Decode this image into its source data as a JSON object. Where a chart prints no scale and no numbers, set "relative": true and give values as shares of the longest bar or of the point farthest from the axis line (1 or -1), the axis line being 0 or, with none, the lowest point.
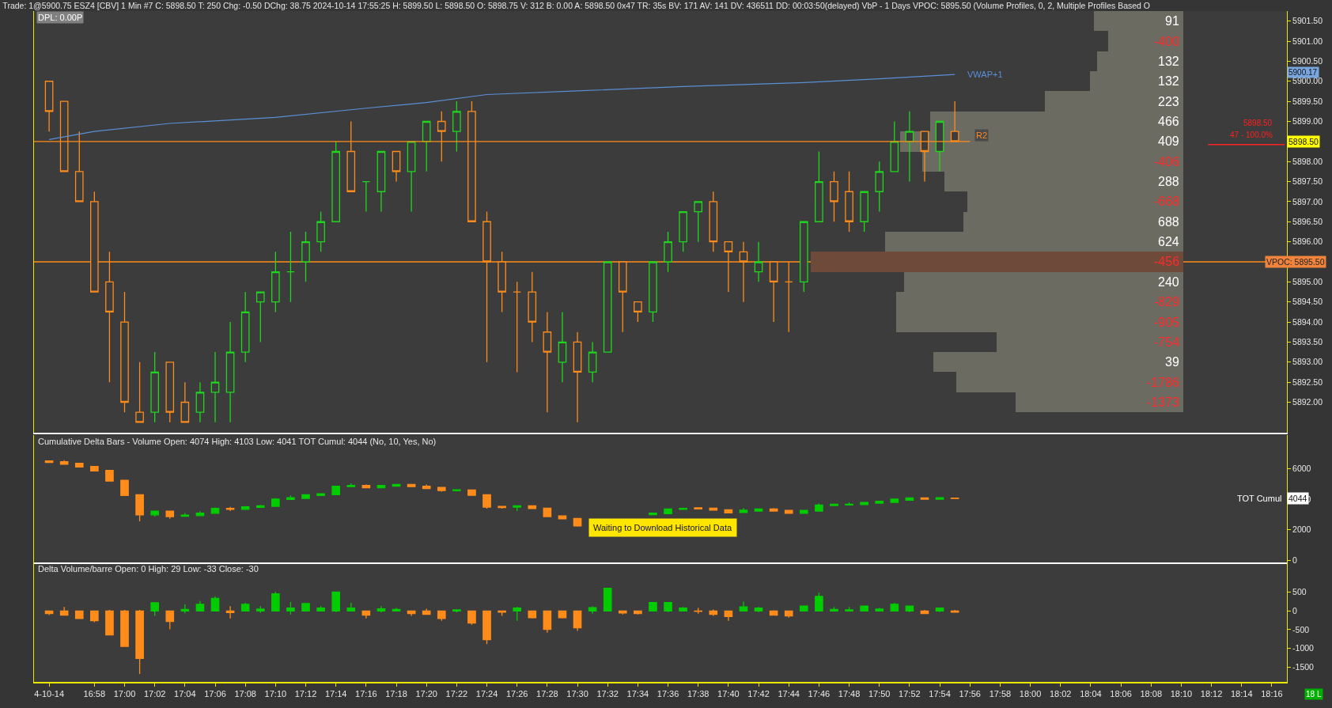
{
  "chart_data": [
    {
      "type": "candlestick",
      "title": "Trade: 1@5900.75 ESZ4 [CBV] 1 Min #7 C: 5898.50 T: 250 Chg: -0.50 DChg: 38.75 2024-10-14 17:55:25 H: 5899.50 L: 5898.50 O: 5898.75 V: 312 B: 0.00 A: 5898.50 0x47 TR: 35s BV: 171 AV: 141 DV: 436511 DD: 00:03:50(delayed) VbP - 1 Days VPOC: 5895.50 (Volume Profiles, 0, 2, Multiple Profiles Based O",
      "subtitle": "DPL: 0.00P",
      "x": [
        "2024-10-14T16:55",
        "2024-10-14T16:56",
        "2024-10-14T16:57",
        "2024-10-14T16:58",
        "2024-10-14T16:59",
        "2024-10-14T17:00",
        "2024-10-14T17:01",
        "2024-10-14T17:02",
        "2024-10-14T17:03",
        "2024-10-14T17:04",
        "2024-10-14T17:05",
        "2024-10-14T17:06",
        "2024-10-14T17:07",
        "2024-10-14T17:08",
        "2024-10-14T17:09",
        "2024-10-14T17:10",
        "2024-10-14T17:11",
        "2024-10-14T17:12",
        "2024-10-14T17:13",
        "2024-10-14T17:14",
        "2024-10-14T17:15",
        "2024-10-14T17:16",
        "2024-10-14T17:17",
        "2024-10-14T17:18",
        "2024-10-14T17:19",
        "2024-10-14T17:20",
        "2024-10-14T17:21",
        "2024-10-14T17:22",
        "2024-10-14T17:23",
        "2024-10-14T17:24",
        "2024-10-14T17:25",
        "2024-10-14T17:26",
        "2024-10-14T17:27",
        "2024-10-14T17:28",
        "2024-10-14T17:29",
        "2024-10-14T17:30",
        "2024-10-14T17:31",
        "2024-10-14T17:32",
        "2024-10-14T17:33",
        "2024-10-14T17:34",
        "2024-10-14T17:35",
        "2024-10-14T17:36",
        "2024-10-14T17:37",
        "2024-10-14T17:38",
        "2024-10-14T17:39",
        "2024-10-14T17:40",
        "2024-10-14T17:41",
        "2024-10-14T17:42",
        "2024-10-14T17:43",
        "2024-10-14T17:44",
        "2024-10-14T17:45",
        "2024-10-14T17:46",
        "2024-10-14T17:47",
        "2024-10-14T17:48",
        "2024-10-14T17:49",
        "2024-10-14T17:50",
        "2024-10-14T17:51",
        "2024-10-14T17:52",
        "2024-10-14T17:53",
        "2024-10-14T17:54",
        "2024-10-14T17:55"
      ],
      "series": [
        {
          "ohlc": [
            [
              5900.0,
              5900.0,
              5898.75,
              5899.25
            ],
            [
              5899.5,
              5899.5,
              5897.75,
              5897.75
            ],
            [
              5897.75,
              5898.75,
              5897.0,
              5897.0
            ],
            [
              5897.0,
              5897.25,
              5894.75,
              5894.75
            ],
            [
              5895.0,
              5895.75,
              5892.5,
              5894.25
            ],
            [
              5894.0,
              5894.75,
              5891.75,
              5892.0
            ],
            [
              5891.75,
              5893.0,
              5891.5,
              5891.5
            ],
            [
              5891.75,
              5893.25,
              5891.5,
              5892.75
            ],
            [
              5893.0,
              5893.0,
              5891.5,
              5891.75
            ],
            [
              5892.0,
              5892.5,
              5891.5,
              5891.5
            ],
            [
              5891.75,
              5892.5,
              5891.5,
              5892.25
            ],
            [
              5892.25,
              5893.25,
              5891.5,
              5892.5
            ],
            [
              5892.25,
              5894.0,
              5891.5,
              5893.25
            ],
            [
              5893.25,
              5894.75,
              5893.0,
              5894.25
            ],
            [
              5894.5,
              5894.75,
              5893.5,
              5894.75
            ],
            [
              5894.5,
              5895.75,
              5894.25,
              5895.25
            ],
            [
              5895.25,
              5896.25,
              5894.5,
              5895.25
            ],
            [
              5895.5,
              5896.25,
              5895.0,
              5896.0
            ],
            [
              5896.0,
              5896.75,
              5895.75,
              5896.5
            ],
            [
              5896.5,
              5898.5,
              5896.5,
              5898.25
            ],
            [
              5898.25,
              5899.0,
              5897.25,
              5897.25
            ],
            [
              5897.5,
              5897.5,
              5896.75,
              5897.5
            ],
            [
              5897.25,
              5898.25,
              5896.75,
              5898.25
            ],
            [
              5898.25,
              5898.25,
              5897.5,
              5897.75
            ],
            [
              5897.75,
              5898.5,
              5896.75,
              5898.5
            ],
            [
              5898.5,
              5899.0,
              5897.75,
              5899.0
            ],
            [
              5899.0,
              5899.25,
              5898.0,
              5898.75
            ],
            [
              5898.75,
              5899.5,
              5898.25,
              5899.25
            ],
            [
              5899.25,
              5899.5,
              5896.5,
              5896.5
            ],
            [
              5896.5,
              5896.75,
              5893.0,
              5895.5
            ],
            [
              5895.5,
              5895.75,
              5894.25,
              5894.75
            ],
            [
              5894.75,
              5895.0,
              5892.75,
              5894.75
            ],
            [
              5894.75,
              5895.25,
              5893.5,
              5894.0
            ],
            [
              5893.75,
              5894.25,
              5891.75,
              5893.25
            ],
            [
              5893.0,
              5894.25,
              5892.5,
              5893.5
            ],
            [
              5893.5,
              5893.75,
              5891.5,
              5892.75
            ],
            [
              5892.75,
              5893.5,
              5892.5,
              5893.25
            ],
            [
              5893.25,
              5895.5,
              5893.25,
              5895.5
            ],
            [
              5895.5,
              5895.5,
              5893.75,
              5894.75
            ],
            [
              5894.5,
              5894.5,
              5894.0,
              5894.25
            ],
            [
              5894.25,
              5895.5,
              5894.0,
              5895.5
            ],
            [
              5895.5,
              5896.25,
              5895.25,
              5896.0
            ],
            [
              5896.0,
              5896.75,
              5895.75,
              5896.75
            ],
            [
              5896.75,
              5897.0,
              5896.0,
              5897.0
            ],
            [
              5897.0,
              5897.25,
              5895.75,
              5896.0
            ],
            [
              5896.0,
              5896.0,
              5894.75,
              5895.75
            ],
            [
              5895.75,
              5896.0,
              5894.5,
              5895.5
            ],
            [
              5895.25,
              5896.0,
              5895.0,
              5895.5
            ],
            [
              5895.5,
              5895.5,
              5894.0,
              5895.0
            ],
            [
              5895.0,
              5895.5,
              5893.75,
              5895.0
            ],
            [
              5895.0,
              5896.5,
              5894.75,
              5896.5
            ],
            [
              5896.5,
              5898.25,
              5896.5,
              5897.5
            ],
            [
              5897.5,
              5897.75,
              5896.5,
              5897.0
            ],
            [
              5897.25,
              5897.75,
              5896.25,
              5896.5
            ],
            [
              5896.5,
              5897.25,
              5896.25,
              5897.25
            ],
            [
              5897.25,
              5898.0,
              5896.75,
              5897.75
            ],
            [
              5897.75,
              5899.0,
              5897.75,
              5898.5
            ],
            [
              5898.5,
              5899.25,
              5897.5,
              5898.75
            ],
            [
              5898.75,
              5898.75,
              5897.5,
              5898.25
            ],
            [
              5898.25,
              5899.0,
              5897.75,
              5899.0
            ],
            [
              5898.75,
              5899.5,
              5898.5,
              5898.5
            ]
          ],
          "colors": [
            "#ff8c1a",
            "#ff8c1a",
            "#ff8c1a",
            "#ff8c1a",
            "#ff8c1a",
            "#ff8c1a",
            "#ff8c1a",
            "#1ed81e",
            "#ff8c1a",
            "#ff8c1a",
            "#1ed81e",
            "#1ed81e",
            "#1ed81e",
            "#1ed81e",
            "#1ed81e",
            "#1ed81e",
            "#1ed81e",
            "#1ed81e",
            "#1ed81e",
            "#1ed81e",
            "#ff8c1a",
            "#1ed81e",
            "#1ed81e",
            "#ff8c1a",
            "#1ed81e",
            "#1ed81e",
            "#ff8c1a",
            "#1ed81e",
            "#ff8c1a",
            "#ff8c1a",
            "#ff8c1a",
            "#ff8c1a",
            "#ff8c1a",
            "#ff8c1a",
            "#1ed81e",
            "#ff8c1a",
            "#1ed81e",
            "#1ed81e",
            "#ff8c1a",
            "#ff8c1a",
            "#1ed81e",
            "#1ed81e",
            "#1ed81e",
            "#1ed81e",
            "#ff8c1a",
            "#ff8c1a",
            "#ff8c1a",
            "#1ed81e",
            "#ff8c1a",
            "#ff8c1a",
            "#1ed81e",
            "#1ed81e",
            "#ff8c1a",
            "#ff8c1a",
            "#1ed81e",
            "#1ed81e",
            "#1ed81e",
            "#1ed81e",
            "#ff8c1a",
            "#1ed81e",
            "#ff8c1a"
          ]
        },
        {
          "type": "line",
          "name": "VWAP+1",
          "color": "#5b8fd6",
          "x": [
            "2024-10-14T16:55",
            "2024-10-14T16:58",
            "2024-10-14T17:03",
            "2024-10-14T17:10",
            "2024-10-14T17:16",
            "2024-10-14T17:20",
            "2024-10-14T17:24",
            "2024-10-14T17:30",
            "2024-10-14T17:37",
            "2024-10-14T17:45",
            "2024-10-14T17:50",
            "2024-10-14T17:55"
          ],
          "values": [
            5898.55,
            5898.75,
            5898.95,
            5899.1,
            5899.33,
            5899.47,
            5899.67,
            5899.76,
            5899.87,
            5899.97,
            5900.06,
            5900.17
          ]
        }
      ],
      "xlim": [
        "2024-10-14T16:54",
        "2024-10-14T18:17"
      ],
      "ylim": [
        5891.25,
        5901.75
      ],
      "yticks": [
        {
          "value": 5901.5,
          "label": "5901.50"
        },
        {
          "value": 5901.0,
          "label": "5901.00"
        },
        {
          "value": 5900.5,
          "label": "5900.50"
        },
        {
          "value": 5900.0,
          "label": "5900.00"
        },
        {
          "value": 5899.5,
          "label": "5899.50"
        },
        {
          "value": 5899.0,
          "label": "5899.00"
        },
        {
          "value": 5898.5,
          "label": null
        },
        {
          "value": 5898.0,
          "label": "5898.00"
        },
        {
          "value": 5897.5,
          "label": "5897.50"
        },
        {
          "value": 5897.0,
          "label": "5897.00"
        },
        {
          "value": 5896.5,
          "label": "5896.50"
        },
        {
          "value": 5896.0,
          "label": "5896.00"
        },
        {
          "value": 5895.5,
          "label": null
        },
        {
          "value": 5895.0,
          "label": "5895.00"
        },
        {
          "value": 5894.5,
          "label": "5894.50"
        },
        {
          "value": 5894.0,
          "label": "5894.00"
        },
        {
          "value": 5893.5,
          "label": "5893.50"
        },
        {
          "value": 5893.0,
          "label": "5893.00"
        },
        {
          "value": 5892.5,
          "label": "5892.50"
        },
        {
          "value": 5892.0,
          "label": "5892.00"
        }
      ],
      "ref_lines": [
        {
          "axis": "y",
          "value": 5898.5,
          "label": "R2",
          "color": "#ff8c1a"
        },
        {
          "axis": "y",
          "value": 5895.5,
          "label": "VPOC: 5895.50",
          "color": "#ff8c1a"
        }
      ],
      "annotations": [
        "5900.17",
        {
          "text": "5898.50",
          "y": 5898.5
        },
        "5898.50",
        "47 - 100.0%"
      ],
      "tick_labels": "y"
    },
    {
      "type": "bar",
      "orientation": "horizontal",
      "relative": true,
      "tick_labels": false,
      "categories": [
        "5901.50",
        "5901.00",
        "5900.50",
        "5900.00",
        "5899.50",
        "5899.00",
        "5898.50",
        "5898.00",
        "5897.50",
        "5897.00",
        "5896.50",
        "5896.00",
        "5895.50",
        "5895.00",
        "5894.50",
        "5894.00",
        "5893.50",
        "5893.00",
        "5892.50",
        "5892.00"
      ],
      "values": [
        0.24,
        0.2,
        0.23,
        0.25,
        0.37,
        0.68,
        0.76,
        0.7,
        0.64,
        0.58,
        0.59,
        0.8,
        1.0,
        0.75,
        0.77,
        0.77,
        0.5,
        0.67,
        0.61,
        0.45
      ],
      "colors": [
        "#6b6b62",
        "#6b6b62",
        "#6b6b62",
        "#6b6b62",
        "#6b6b62",
        "#6b6b62",
        "#6b6b62",
        "#6b6b62",
        "#6b6b62",
        "#6b6b62",
        "#6b6b62",
        "#6b6b62",
        "#6e4a3a",
        "#6b6b62",
        "#6b6b62",
        "#6b6b62",
        "#6b6b62",
        "#6b6b62",
        "#6b6b62",
        "#6b6b62"
      ],
      "annotations": [
        "91",
        "-400",
        "132",
        "132",
        "223",
        "466",
        "409",
        "-406",
        "288",
        "-668",
        "688",
        "624",
        "-456",
        "240",
        "-829",
        "-905",
        "-754",
        "39",
        "-1786",
        "-1373"
      ]
    },
    {
      "type": "candlestick",
      "title": "Cumulative Delta Bars - Volume Open: 4074 High: 4103 Low: 4041 TOT Cumul: 4044 (No, 10, Yes, No)",
      "x": [
        "2024-10-14T16:55",
        "2024-10-14T16:56",
        "2024-10-14T16:57",
        "2024-10-14T16:58",
        "2024-10-14T16:59",
        "2024-10-14T17:00",
        "2024-10-14T17:01",
        "2024-10-14T17:02",
        "2024-10-14T17:03",
        "2024-10-14T17:04",
        "2024-10-14T17:05",
        "2024-10-14T17:06",
        "2024-10-14T17:07",
        "2024-10-14T17:08",
        "2024-10-14T17:09",
        "2024-10-14T17:10",
        "2024-10-14T17:11",
        "2024-10-14T17:12",
        "2024-10-14T17:13",
        "2024-10-14T17:14",
        "2024-10-14T17:15",
        "2024-10-14T17:16",
        "2024-10-14T17:17",
        "2024-10-14T17:18",
        "2024-10-14T17:19",
        "2024-10-14T17:20",
        "2024-10-14T17:21",
        "2024-10-14T17:22",
        "2024-10-14T17:23",
        "2024-10-14T17:24",
        "2024-10-14T17:25",
        "2024-10-14T17:26",
        "2024-10-14T17:27",
        "2024-10-14T17:28",
        "2024-10-14T17:29",
        "2024-10-14T17:30",
        "2024-10-14T17:35",
        "2024-10-14T17:36",
        "2024-10-14T17:37",
        "2024-10-14T17:38",
        "2024-10-14T17:39",
        "2024-10-14T17:40",
        "2024-10-14T17:41",
        "2024-10-14T17:42",
        "2024-10-14T17:43",
        "2024-10-14T17:44",
        "2024-10-14T17:45",
        "2024-10-14T17:46",
        "2024-10-14T17:47",
        "2024-10-14T17:48",
        "2024-10-14T17:49",
        "2024-10-14T17:50",
        "2024-10-14T17:51",
        "2024-10-14T17:52",
        "2024-10-14T17:53",
        "2024-10-14T17:54",
        "2024-10-14T17:55"
      ],
      "series": [
        {
          "ohlc": [
            [
              6500,
              6500,
              6410,
              6410
            ],
            [
              6450,
              6550,
              6290,
              6290
            ],
            [
              6350,
              6350,
              6110,
              6110
            ],
            [
              6140,
              6140,
              5850,
              5850
            ],
            [
              5880,
              5880,
              5180,
              5180
            ],
            [
              5230,
              5270,
              4240,
              4240
            ],
            [
              4290,
              4290,
              2550,
              2970
            ],
            [
              2970,
              3210,
              2860,
              3210
            ],
            [
              3210,
              3210,
              2710,
              2860
            ],
            [
              2880,
              3090,
              2880,
              2950
            ],
            [
              2920,
              3210,
              2920,
              3090
            ],
            [
              3070,
              3450,
              3070,
              3400
            ],
            [
              3400,
              3500,
              3220,
              3330
            ],
            [
              3330,
              3550,
              3330,
              3500
            ],
            [
              3460,
              3620,
              3460,
              3570
            ],
            [
              3530,
              4070,
              3530,
              4010
            ],
            [
              3980,
              4240,
              3980,
              4100
            ],
            [
              4050,
              4290,
              4050,
              4290
            ],
            [
              4240,
              4390,
              4240,
              4360
            ],
            [
              4290,
              4840,
              4290,
              4840
            ],
            [
              4820,
              5040,
              4820,
              4900
            ],
            [
              4900,
              4960,
              4720,
              4750
            ],
            [
              4750,
              4900,
              4750,
              4900
            ],
            [
              4850,
              4960,
              4850,
              4960
            ],
            [
              4960,
              4960,
              4820,
              4820
            ],
            [
              4850,
              4960,
              4700,
              4700
            ],
            [
              4770,
              4800,
              4490,
              4560
            ],
            [
              4560,
              4610,
              4510,
              4610
            ],
            [
              4600,
              4600,
              4250,
              4250
            ],
            [
              4290,
              4290,
              3380,
              3480
            ],
            [
              3520,
              3520,
              3380,
              3450
            ],
            [
              3480,
              3570,
              3220,
              3570
            ],
            [
              3570,
              3570,
              3380,
              3380
            ],
            [
              3410,
              3410,
              2830,
              2860
            ],
            [
              2900,
              2900,
              2710,
              2710
            ],
            [
              2740,
              2740,
              2200,
              2250
            ],
            [
              2980,
              3090,
              2980,
              3090
            ],
            [
              3050,
              3360,
              3050,
              3360
            ],
            [
              3330,
              3400,
              3330,
              3400
            ],
            [
              3430,
              3460,
              3360,
              3360
            ],
            [
              3410,
              3410,
              3280,
              3280
            ],
            [
              3310,
              3310,
              3070,
              3100
            ],
            [
              3120,
              3410,
              3120,
              3280
            ],
            [
              3220,
              3360,
              3220,
              3360
            ],
            [
              3360,
              3410,
              3220,
              3220
            ],
            [
              3260,
              3260,
              3070,
              3070
            ],
            [
              3070,
              3260,
              3070,
              3260
            ],
            [
              3220,
              3720,
              3220,
              3620
            ],
            [
              3580,
              3670,
              3580,
              3670
            ],
            [
              3620,
              3790,
              3620,
              3670
            ],
            [
              3640,
              3790,
              3640,
              3790
            ],
            [
              3740,
              3890,
              3740,
              3860
            ],
            [
              3790,
              4050,
              3790,
              4000
            ],
            [
              3930,
              4080,
              3930,
              4080
            ],
            [
              4080,
              4080,
              4000,
              4000
            ],
            [
              4000,
              4130,
              4000,
              4100
            ],
            [
              4074,
              4103,
              4041,
              4044
            ]
          ],
          "colors": [
            "#ff8c1a",
            "#ff8c1a",
            "#ff8c1a",
            "#ff8c1a",
            "#ff8c1a",
            "#ff8c1a",
            "#ff8c1a",
            "#00cc00",
            "#ff8c1a",
            "#00cc00",
            "#00cc00",
            "#00cc00",
            "#ff8c1a",
            "#00cc00",
            "#00cc00",
            "#00cc00",
            "#00cc00",
            "#00cc00",
            "#00cc00",
            "#00cc00",
            "#00cc00",
            "#ff8c1a",
            "#00cc00",
            "#00cc00",
            "#ff8c1a",
            "#ff8c1a",
            "#ff8c1a",
            "#00cc00",
            "#ff8c1a",
            "#ff8c1a",
            "#ff8c1a",
            "#00cc00",
            "#ff8c1a",
            "#ff8c1a",
            "#ff8c1a",
            "#ff8c1a",
            "#00cc00",
            "#00cc00",
            "#00cc00",
            "#ff8c1a",
            "#ff8c1a",
            "#ff8c1a",
            "#00cc00",
            "#00cc00",
            "#ff8c1a",
            "#ff8c1a",
            "#00cc00",
            "#00cc00",
            "#00cc00",
            "#00cc00",
            "#00cc00",
            "#00cc00",
            "#00cc00",
            "#00cc00",
            "#ff8c1a",
            "#00cc00",
            "#ff8c1a"
          ]
        }
      ],
      "xlim": [
        "2024-10-14T16:54",
        "2024-10-14T18:17"
      ],
      "ylim": [
        -150,
        8200
      ],
      "yticks": [
        0,
        2000,
        4000,
        6000
      ],
      "annotations": [
        "TOT Cumul",
        {
          "text": "4044",
          "y": 4044
        },
        "Waiting to Download Historical Data"
      ],
      "tick_labels": "y"
    },
    {
      "type": "candlestick",
      "title": "Delta Volume/barre Open: 0 High: 29 Low: -33 Close: -30",
      "x": [
        "2024-10-14T16:55",
        "2024-10-14T16:56",
        "2024-10-14T16:57",
        "2024-10-14T16:58",
        "2024-10-14T16:59",
        "2024-10-14T17:00",
        "2024-10-14T17:01",
        "2024-10-14T17:02",
        "2024-10-14T17:03",
        "2024-10-14T17:04",
        "2024-10-14T17:05",
        "2024-10-14T17:06",
        "2024-10-14T17:07",
        "2024-10-14T17:08",
        "2024-10-14T17:09",
        "2024-10-14T17:10",
        "2024-10-14T17:11",
        "2024-10-14T17:12",
        "2024-10-14T17:13",
        "2024-10-14T17:14",
        "2024-10-14T17:15",
        "2024-10-14T17:16",
        "2024-10-14T17:17",
        "2024-10-14T17:18",
        "2024-10-14T17:19",
        "2024-10-14T17:20",
        "2024-10-14T17:21",
        "2024-10-14T17:22",
        "2024-10-14T17:23",
        "2024-10-14T17:24",
        "2024-10-14T17:25",
        "2024-10-14T17:26",
        "2024-10-14T17:27",
        "2024-10-14T17:28",
        "2024-10-14T17:29",
        "2024-10-14T17:30",
        "2024-10-14T17:31",
        "2024-10-14T17:32",
        "2024-10-14T17:33",
        "2024-10-14T17:34",
        "2024-10-14T17:35",
        "2024-10-14T17:36",
        "2024-10-14T17:37",
        "2024-10-14T17:38",
        "2024-10-14T17:39",
        "2024-10-14T17:40",
        "2024-10-14T17:41",
        "2024-10-14T17:42",
        "2024-10-14T17:43",
        "2024-10-14T17:44",
        "2024-10-14T17:45",
        "2024-10-14T17:46",
        "2024-10-14T17:47",
        "2024-10-14T17:48",
        "2024-10-14T17:49",
        "2024-10-14T17:50",
        "2024-10-14T17:51",
        "2024-10-14T17:52",
        "2024-10-14T17:53",
        "2024-10-14T17:54",
        "2024-10-14T17:55"
      ],
      "series": [
        {
          "ohlc": [
            [
              0,
              0,
              -110,
              -70
            ],
            [
              0,
              110,
              -110,
              -110
            ],
            [
              0,
              0,
              -200,
              -200
            ],
            [
              0,
              0,
              -300,
              -260
            ],
            [
              0,
              30,
              -640,
              -640
            ],
            [
              0,
              30,
              -950,
              -950
            ],
            [
              0,
              30,
              -1690,
              -1270
            ],
            [
              0,
              220,
              -130,
              220
            ],
            [
              0,
              0,
              -490,
              -280
            ],
            [
              0,
              180,
              -60,
              40
            ],
            [
              0,
              270,
              0,
              180
            ],
            [
              0,
              390,
              0,
              340
            ],
            [
              0,
              130,
              -200,
              -40
            ],
            [
              0,
              220,
              0,
              180
            ],
            [
              0,
              130,
              -50,
              50
            ],
            [
              0,
              510,
              0,
              460
            ],
            [
              0,
              240,
              -90,
              80
            ],
            [
              0,
              200,
              0,
              200
            ],
            [
              0,
              130,
              0,
              80
            ],
            [
              0,
              510,
              -30,
              510
            ],
            [
              0,
              220,
              0,
              80
            ],
            [
              0,
              0,
              -200,
              -110
            ],
            [
              0,
              130,
              -40,
              60
            ],
            [
              0,
              80,
              0,
              40
            ],
            [
              0,
              0,
              -130,
              -70
            ],
            [
              0,
              60,
              -90,
              -90
            ],
            [
              0,
              0,
              -260,
              -200
            ],
            [
              0,
              30,
              -40,
              30
            ],
            [
              0,
              0,
              -370,
              -320
            ],
            [
              0,
              0,
              -890,
              -770
            ],
            [
              0,
              0,
              -130,
              -30
            ],
            [
              0,
              110,
              -260,
              80
            ],
            [
              0,
              0,
              -200,
              -180
            ],
            [
              0,
              0,
              -580,
              -490
            ],
            [
              0,
              0,
              -200,
              -180
            ],
            [
              0,
              0,
              -530,
              -450
            ],
            [
              0,
              130,
              -70,
              90
            ],
            [
              0,
              610,
              0,
              610
            ],
            [
              0,
              0,
              -90,
              -50
            ],
            [
              0,
              0,
              -90,
              -70
            ],
            [
              0,
              230,
              0,
              230
            ],
            [
              0,
              230,
              -30,
              230
            ],
            [
              0,
              110,
              0,
              80
            ],
            [
              0,
              80,
              -70,
              -10
            ],
            [
              0,
              40,
              -130,
              -90
            ],
            [
              0,
              0,
              -260,
              -150
            ],
            [
              0,
              250,
              0,
              110
            ],
            [
              0,
              110,
              -30,
              80
            ],
            [
              0,
              20,
              -110,
              -110
            ],
            [
              0,
              0,
              -180,
              -130
            ],
            [
              0,
              130,
              0,
              130
            ],
            [
              0,
              490,
              0,
              390
            ],
            [
              0,
              110,
              -10,
              40
            ],
            [
              0,
              110,
              0,
              30
            ],
            [
              0,
              130,
              0,
              130
            ],
            [
              0,
              80,
              0,
              50
            ],
            [
              0,
              220,
              0,
              180
            ],
            [
              0,
              130,
              -30,
              130
            ],
            [
              0,
              30,
              -70,
              -70
            ],
            [
              0,
              80,
              -30,
              80
            ],
            [
              0,
              29,
              -33,
              -30
            ]
          ],
          "colors": [
            "#ff8c1a",
            "#ff8c1a",
            "#ff8c1a",
            "#ff8c1a",
            "#ff8c1a",
            "#ff8c1a",
            "#ff8c1a",
            "#00cc00",
            "#ff8c1a",
            "#00cc00",
            "#00cc00",
            "#00cc00",
            "#ff8c1a",
            "#00cc00",
            "#00cc00",
            "#00cc00",
            "#00cc00",
            "#00cc00",
            "#00cc00",
            "#00cc00",
            "#00cc00",
            "#ff8c1a",
            "#00cc00",
            "#00cc00",
            "#ff8c1a",
            "#ff8c1a",
            "#ff8c1a",
            "#00cc00",
            "#ff8c1a",
            "#ff8c1a",
            "#ff8c1a",
            "#00cc00",
            "#ff8c1a",
            "#ff8c1a",
            "#ff8c1a",
            "#ff8c1a",
            "#00cc00",
            "#00cc00",
            "#ff8c1a",
            "#ff8c1a",
            "#00cc00",
            "#00cc00",
            "#00cc00",
            "#ff8c1a",
            "#ff8c1a",
            "#ff8c1a",
            "#00cc00",
            "#00cc00",
            "#ff8c1a",
            "#ff8c1a",
            "#00cc00",
            "#00cc00",
            "#00cc00",
            "#00cc00",
            "#00cc00",
            "#00cc00",
            "#00cc00",
            "#00cc00",
            "#ff8c1a",
            "#00cc00",
            "#ff8c1a"
          ]
        }
      ],
      "xlim": [
        "2024-10-14T16:54",
        "2024-10-14T18:17"
      ],
      "xticks": [
        {
          "value": "2024-10-14T16:55",
          "label": "4-10-14"
        },
        {
          "value": "2024-10-14T16:58",
          "label": "16:58"
        },
        {
          "value": "2024-10-14T17:00",
          "label": "17:00"
        },
        {
          "value": "2024-10-14T17:02",
          "label": "17:02"
        },
        {
          "value": "2024-10-14T17:04",
          "label": "17:04"
        },
        {
          "value": "2024-10-14T17:06",
          "label": "17:06"
        },
        {
          "value": "2024-10-14T17:08",
          "label": "17:08"
        },
        {
          "value": "2024-10-14T17:10",
          "label": "17:10"
        },
        {
          "value": "2024-10-14T17:12",
          "label": "17:12"
        },
        {
          "value": "2024-10-14T17:14",
          "label": "17:14"
        },
        {
          "value": "2024-10-14T17:16",
          "label": "17:16"
        },
        {
          "value": "2024-10-14T17:18",
          "label": "17:18"
        },
        {
          "value": "2024-10-14T17:20",
          "label": "17:20"
        },
        {
          "value": "2024-10-14T17:22",
          "label": "17:22"
        },
        {
          "value": "2024-10-14T17:24",
          "label": "17:24"
        },
        {
          "value": "2024-10-14T17:26",
          "label": "17:26"
        },
        {
          "value": "2024-10-14T17:28",
          "label": "17:28"
        },
        {
          "value": "2024-10-14T17:30",
          "label": "17:30"
        },
        {
          "value": "2024-10-14T17:32",
          "label": "17:32"
        },
        {
          "value": "2024-10-14T17:34",
          "label": "17:34"
        },
        {
          "value": "2024-10-14T17:36",
          "label": "17:36"
        },
        {
          "value": "2024-10-14T17:38",
          "label": "17:38"
        },
        {
          "value": "2024-10-14T17:40",
          "label": "17:40"
        },
        {
          "value": "2024-10-14T17:42",
          "label": "17:42"
        },
        {
          "value": "2024-10-14T17:44",
          "label": "17:44"
        },
        {
          "value": "2024-10-14T17:46",
          "label": "17:46"
        },
        {
          "value": "2024-10-14T17:48",
          "label": "17:48"
        },
        {
          "value": "2024-10-14T17:50",
          "label": "17:50"
        },
        {
          "value": "2024-10-14T17:52",
          "label": "17:52"
        },
        {
          "value": "2024-10-14T17:54",
          "label": "17:54"
        },
        {
          "value": "2024-10-14T17:56",
          "label": "17:56"
        },
        {
          "value": "2024-10-14T17:58",
          "label": "17:58"
        },
        {
          "value": "2024-10-14T18:00",
          "label": "18:00"
        },
        {
          "value": "2024-10-14T18:02",
          "label": "18:02"
        },
        {
          "value": "2024-10-14T18:04",
          "label": "18:04"
        },
        {
          "value": "2024-10-14T18:06",
          "label": "18:06"
        },
        {
          "value": "2024-10-14T18:08",
          "label": "18:08"
        },
        {
          "value": "2024-10-14T18:10",
          "label": "18:10"
        },
        {
          "value": "2024-10-14T18:12",
          "label": "18:12"
        },
        {
          "value": "2024-10-14T18:14",
          "label": "18:14"
        },
        {
          "value": "2024-10-14T18:16",
          "label": "18:16"
        }
      ],
      "ylim": [
        -1900,
        1300
      ],
      "yticks": [
        500,
        0,
        -500,
        -1000,
        -1500
      ],
      "annotations": [
        "18 L"
      ]
    }
  ]
}
